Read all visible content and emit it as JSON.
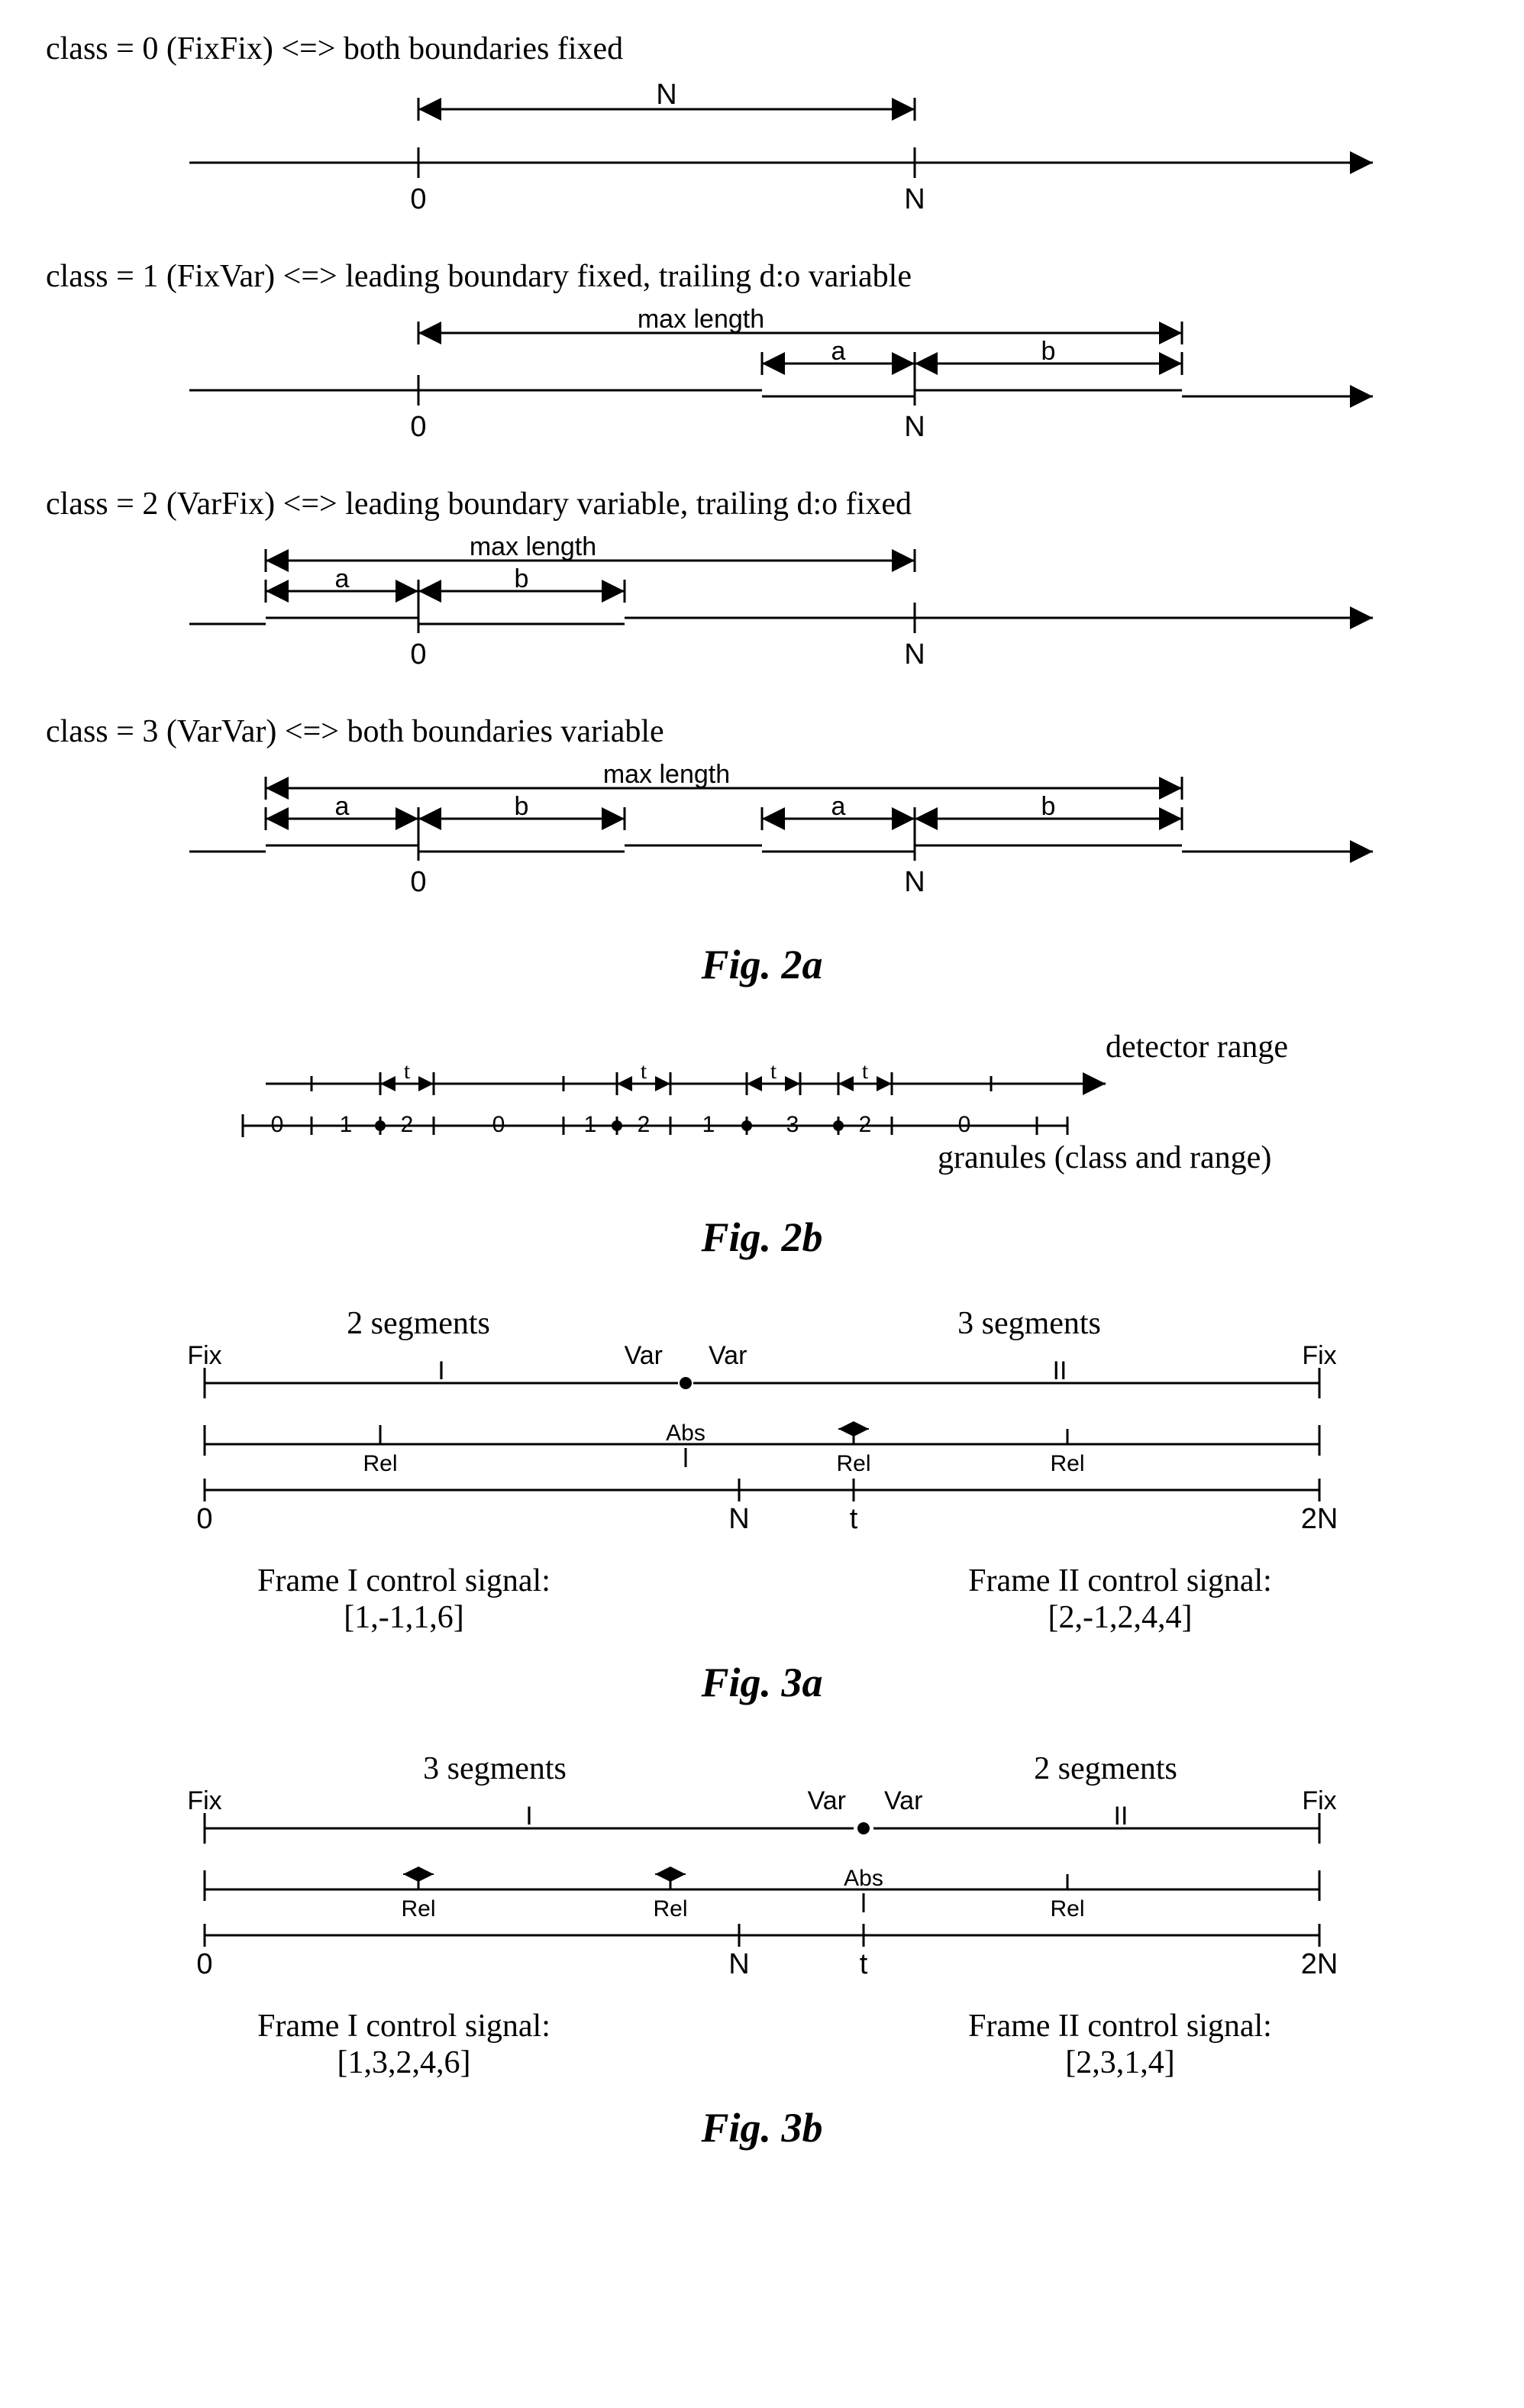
{
  "fig2a": {
    "class0": {
      "title": "class = 0 (FixFix) <=> both boundaries fixed",
      "n_label": "N",
      "zero_label": "0",
      "n_tick_label": "N"
    },
    "class1": {
      "title": "class = 1 (FixVar) <=> leading boundary fixed, trailing d:o variable",
      "max_length": "max length",
      "a_label": "a",
      "b_label": "b",
      "zero_label": "0",
      "n_tick_label": "N"
    },
    "class2": {
      "title": "class = 2 (VarFix) <=> leading boundary variable, trailing d:o fixed",
      "max_length": "max length",
      "a_label": "a",
      "b_label": "b",
      "zero_label": "0",
      "n_tick_label": "N"
    },
    "class3": {
      "title": "class = 3 (VarVar) <=> both boundaries variable",
      "max_length": "max length",
      "a_label": "a",
      "b_label": "b",
      "zero_label": "0",
      "n_tick_label": "N"
    },
    "caption": "Fig. 2a"
  },
  "fig2b": {
    "detector_range": "detector range",
    "granules_label": "granules (class and range)",
    "t_label": "t",
    "granule_classes": [
      "0",
      "1",
      "2",
      "0",
      "1",
      "2",
      "1",
      "3",
      "2",
      "0"
    ],
    "caption": "Fig. 2b"
  },
  "fig3a": {
    "segments_left": "2 segments",
    "segments_right": "3 segments",
    "fix_label": "Fix",
    "var_label": "Var",
    "rel_label": "Rel",
    "abs_label": "Abs",
    "roman_i": "I",
    "roman_ii": "II",
    "tick_0": "0",
    "tick_n": "N",
    "tick_t": "t",
    "tick_2n": "2N",
    "frame_i_title": "Frame I  control signal:",
    "frame_i_signal": "[1,-1,1,6]",
    "frame_ii_title": "Frame II control signal:",
    "frame_ii_signal": "[2,-1,2,4,4]",
    "caption": "Fig. 3a"
  },
  "fig3b": {
    "segments_left": "3 segments",
    "segments_right": "2 segments",
    "fix_label": "Fix",
    "var_label": "Var",
    "rel_label": "Rel",
    "abs_label": "Abs",
    "roman_i": "I",
    "roman_ii": "II",
    "tick_0": "0",
    "tick_n": "N",
    "tick_t": "t",
    "tick_2n": "2N",
    "frame_i_title": "Frame I  control signal:",
    "frame_i_signal": "[1,3,2,4,6]",
    "frame_ii_title": "Frame II control signal:",
    "frame_ii_signal": "[2,3,1,4]",
    "caption": "Fig. 3b"
  },
  "style": {
    "stroke": "#000000",
    "stroke_width": 3,
    "font_size_label": 38,
    "font_size_title": 42,
    "font_size_caption": 54,
    "font_size_sans": 34
  }
}
